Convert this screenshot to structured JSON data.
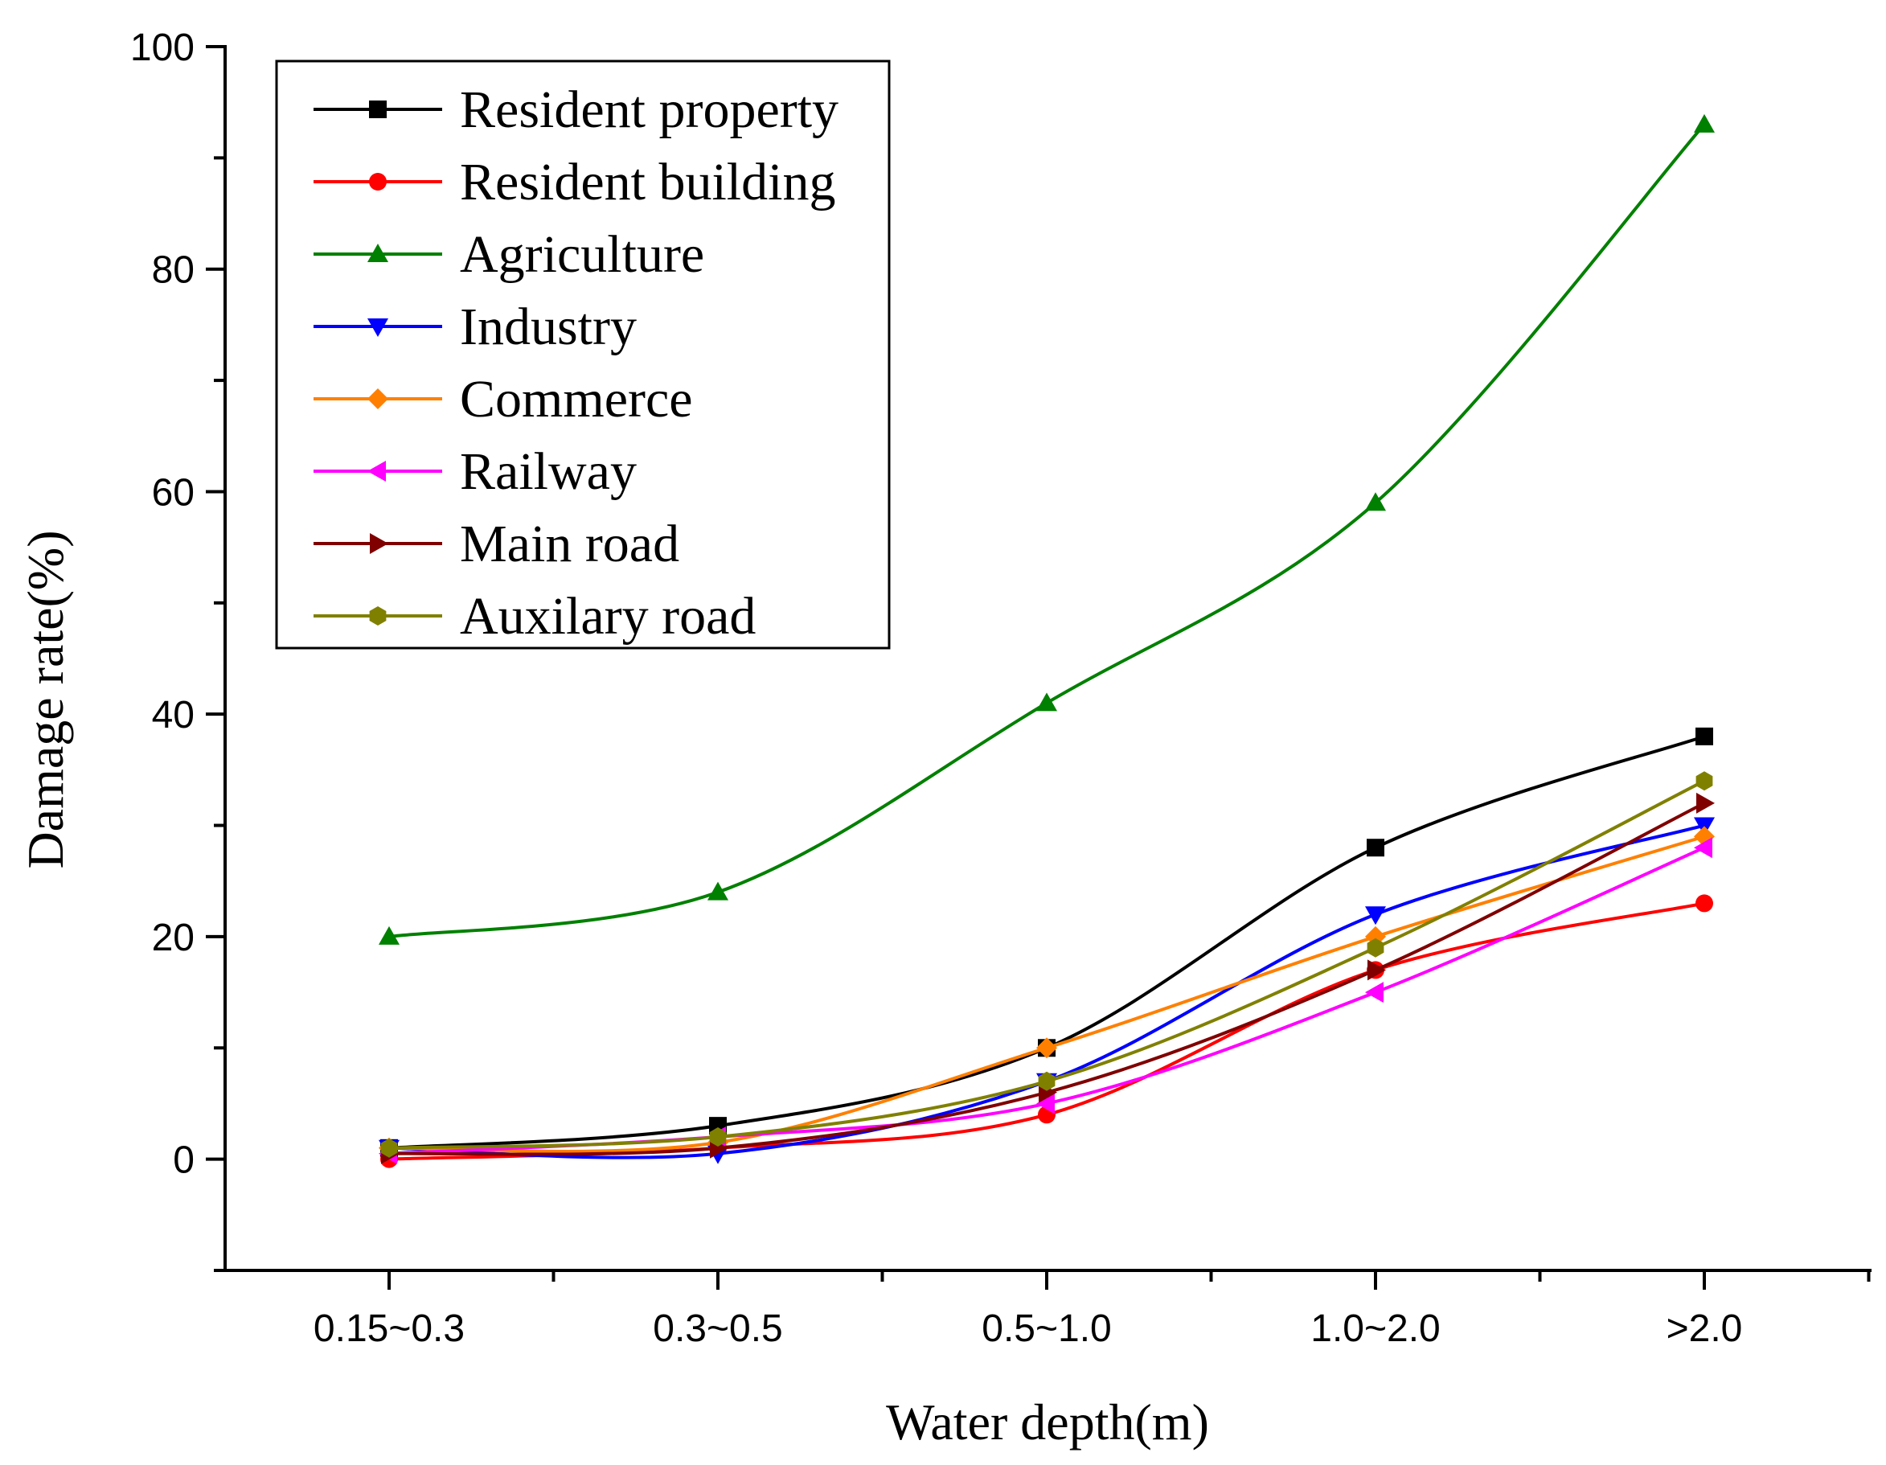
{
  "chart_data": {
    "type": "line",
    "title": "",
    "xlabel": "Water depth(m)",
    "ylabel": "Damage rate(%)",
    "categories": [
      "0.15~0.3",
      "0.3~0.5",
      "0.5~1.0",
      "1.0~2.0",
      ">2.0"
    ],
    "ylim": [
      -10,
      100
    ],
    "yticks": [
      0,
      20,
      40,
      60,
      80,
      100
    ],
    "legend_position": "top-left",
    "grid": false,
    "series": [
      {
        "name": "Resident property",
        "color": "#000000",
        "marker": "square",
        "values": [
          1,
          3,
          10,
          28,
          38
        ]
      },
      {
        "name": "Resident building",
        "color": "#ff0000",
        "marker": "circle",
        "values": [
          0,
          1,
          4,
          17,
          23
        ]
      },
      {
        "name": "Agriculture",
        "color": "#008000",
        "marker": "triangle-up",
        "values": [
          20,
          24,
          41,
          59,
          93
        ]
      },
      {
        "name": "Industry",
        "color": "#0000ff",
        "marker": "triangle-down",
        "values": [
          1,
          0.5,
          7,
          22,
          30
        ]
      },
      {
        "name": "Commerce",
        "color": "#ff8000",
        "marker": "diamond",
        "values": [
          1,
          1.5,
          10,
          20,
          29
        ]
      },
      {
        "name": "Railway",
        "color": "#ff00ff",
        "marker": "triangle-left",
        "values": [
          0.5,
          2,
          5,
          15,
          28
        ]
      },
      {
        "name": "Main road",
        "color": "#800000",
        "marker": "triangle-right",
        "values": [
          0.5,
          1,
          6,
          17,
          32
        ]
      },
      {
        "name": "Auxilary road",
        "color": "#808000",
        "marker": "hexagon",
        "values": [
          1,
          2,
          7,
          19,
          34
        ]
      }
    ]
  }
}
